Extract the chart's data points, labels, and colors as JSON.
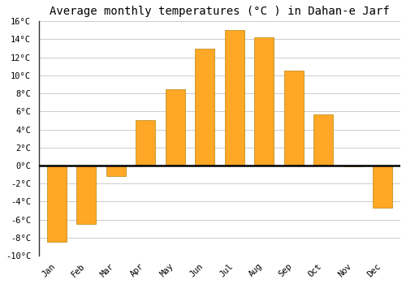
{
  "title": "Average monthly temperatures (°C ) in Dahan-e Jarf",
  "months": [
    "Jan",
    "Feb",
    "Mar",
    "Apr",
    "May",
    "Jun",
    "Jul",
    "Aug",
    "Sep",
    "Oct",
    "Nov",
    "Dec"
  ],
  "values": [
    -8.5,
    -6.5,
    -1.2,
    5.0,
    8.5,
    13.0,
    15.0,
    14.2,
    10.5,
    5.7,
    -0.1,
    -4.7
  ],
  "bar_color": "#FFA726",
  "bar_edge_color": "#B8860B",
  "ylim": [
    -10,
    16
  ],
  "yticks": [
    -10,
    -8,
    -6,
    -4,
    -2,
    0,
    2,
    4,
    6,
    8,
    10,
    12,
    14,
    16
  ],
  "ytick_labels": [
    "-10°C",
    "-8°C",
    "-6°C",
    "-4°C",
    "-2°C",
    "0°C",
    "2°C",
    "4°C",
    "6°C",
    "8°C",
    "10°C",
    "12°C",
    "14°C",
    "16°C"
  ],
  "background_color": "#FFFFFF",
  "plot_bg_color": "#FFFFFF",
  "grid_color": "#CCCCCC",
  "zero_line_color": "#000000",
  "spine_color": "#333333",
  "title_fontsize": 10,
  "tick_fontsize": 7.5,
  "font_family": "monospace"
}
